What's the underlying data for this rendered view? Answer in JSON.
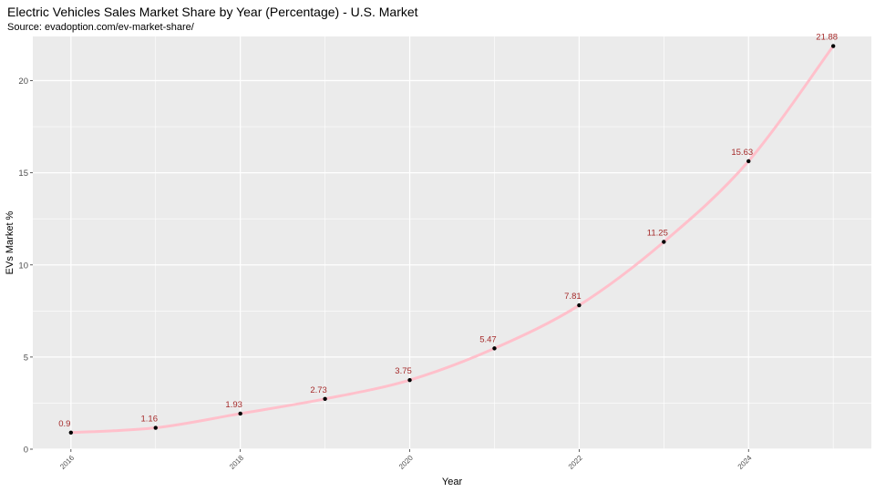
{
  "title": "Electric Vehicles Sales Market Share by Year (Percentage) - U.S. Market",
  "subtitle": "Source: evadoption.com/ev-market-share/",
  "colors": {
    "panel": "#ebebeb",
    "grid": "#ffffff",
    "line": "#ffc0cb",
    "point": "#000000",
    "label": "#a52a2a"
  },
  "chart_data": {
    "type": "line",
    "title": "Electric Vehicles Sales Market Share by Year (Percentage) - U.S. Market",
    "subtitle": "Source: evadoption.com/ev-market-share/",
    "xlabel": "Year",
    "ylabel": "EVs Market %",
    "x": [
      2016,
      2017,
      2018,
      2019,
      2020,
      2021,
      2022,
      2023,
      2024,
      2025
    ],
    "values": [
      0.9,
      1.16,
      1.93,
      2.73,
      3.75,
      5.47,
      7.81,
      11.25,
      15.63,
      21.88
    ],
    "data_labels": [
      "0.9",
      "1.16",
      "1.93",
      "2.73",
      "3.75",
      "5.47",
      "7.81",
      "11.25",
      "15.63",
      "21.88"
    ],
    "x_ticks": [
      2016,
      2018,
      2020,
      2022,
      2024
    ],
    "x_tick_labels": [
      "2016",
      "2018",
      "2020",
      "2022",
      "2024"
    ],
    "y_ticks": [
      0,
      5,
      10,
      15,
      20
    ],
    "y_tick_labels": [
      "0",
      "5",
      "10",
      "15",
      "20"
    ],
    "xlim": [
      2015.55,
      2025.45
    ],
    "ylim": [
      0,
      22.4
    ],
    "grid": true,
    "legend": "none"
  }
}
